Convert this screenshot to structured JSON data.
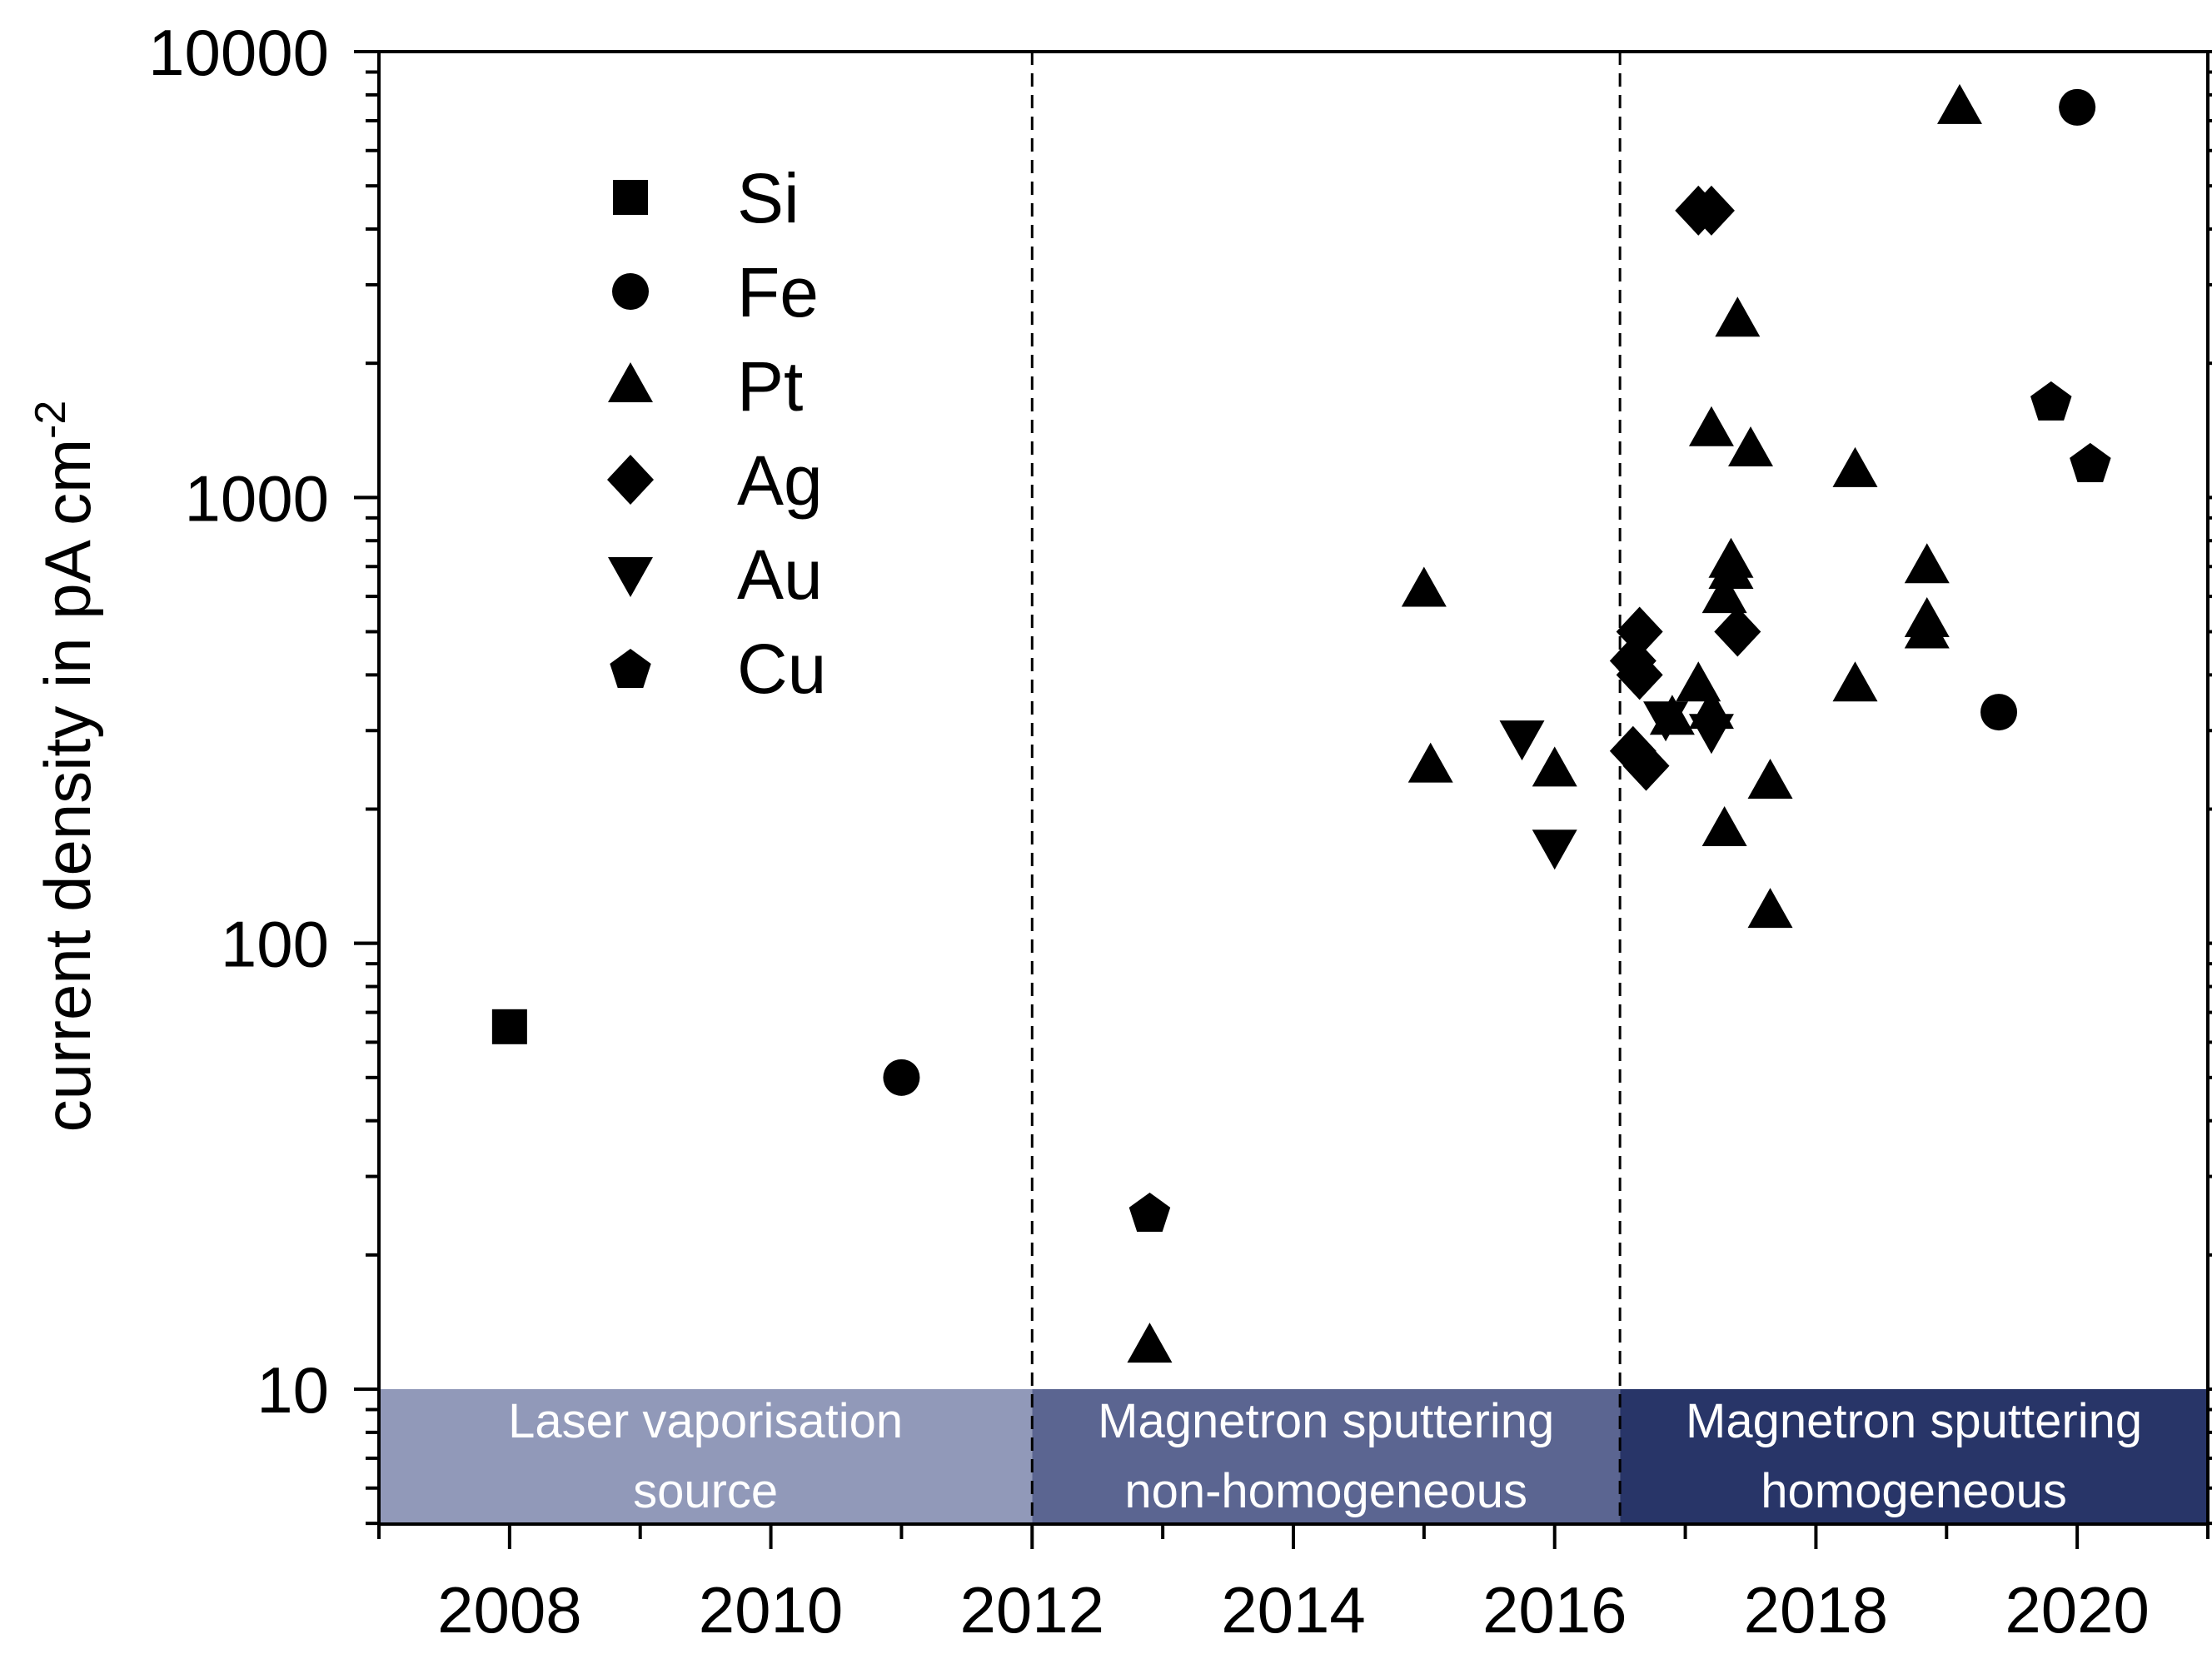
{
  "chart_data": {
    "type": "scatter",
    "ylabel": "current density in pA cm",
    "ylabel_superscript": "-2",
    "xlim": [
      2007,
      2021
    ],
    "ylim": [
      5,
      10000
    ],
    "yscale": "log",
    "grid": false,
    "legend_position": "top-left",
    "x_ticks": [
      2008,
      2010,
      2012,
      2014,
      2016,
      2018,
      2020
    ],
    "x_tick_labels": [
      "2008",
      "2010",
      "2012",
      "2014",
      "2016",
      "2018",
      "2020"
    ],
    "y_ticks": [
      10,
      100,
      1000,
      10000
    ],
    "y_tick_labels": [
      "10",
      "100",
      "1000",
      "10000"
    ],
    "vlines": [
      2012,
      2016.5
    ],
    "regions": [
      {
        "x0": 2007,
        "x1": 2012,
        "y0": 5,
        "y1": 10,
        "color": "#9199b9",
        "lines": [
          "Laser vaporisation",
          "source"
        ]
      },
      {
        "x0": 2012,
        "x1": 2016.5,
        "y0": 5,
        "y1": 10,
        "color": "#5b6591",
        "lines": [
          "Magnetron sputtering",
          "non-homogeneous"
        ]
      },
      {
        "x0": 2016.5,
        "x1": 2021,
        "y0": 5,
        "y1": 10,
        "color": "#283568",
        "lines": [
          "Magnetron sputtering",
          "homogeneous"
        ]
      }
    ],
    "series": [
      {
        "name": "Si",
        "marker": "square",
        "points": [
          [
            2008,
            65
          ]
        ]
      },
      {
        "name": "Fe",
        "marker": "circle",
        "points": [
          [
            2011,
            50
          ],
          [
            2019.4,
            330
          ],
          [
            2020,
            7500
          ]
        ]
      },
      {
        "name": "Pt",
        "marker": "triangle-up",
        "points": [
          [
            2012.9,
            12.5
          ],
          [
            2015,
            620
          ],
          [
            2015.05,
            250
          ],
          [
            2016,
            245
          ],
          [
            2016.9,
            320
          ],
          [
            2017.1,
            380
          ],
          [
            2017.2,
            330
          ],
          [
            2017.2,
            1420
          ],
          [
            2017.3,
            180
          ],
          [
            2017.3,
            600
          ],
          [
            2017.35,
            680
          ],
          [
            2017.35,
            720
          ],
          [
            2017.4,
            2500
          ],
          [
            2017.5,
            1280
          ],
          [
            2017.65,
            230
          ],
          [
            2017.65,
            118
          ],
          [
            2018.3,
            380
          ],
          [
            2018.3,
            1150
          ],
          [
            2018.85,
            500
          ],
          [
            2018.85,
            530
          ],
          [
            2018.85,
            700
          ],
          [
            2019.1,
            7500
          ]
        ]
      },
      {
        "name": "Ag",
        "marker": "diamond",
        "points": [
          [
            2016.6,
            430
          ],
          [
            2016.6,
            270
          ],
          [
            2016.65,
            400
          ],
          [
            2016.65,
            500
          ],
          [
            2016.7,
            250
          ],
          [
            2017.1,
            4400
          ],
          [
            2017.2,
            4400
          ],
          [
            2017.4,
            500
          ]
        ]
      },
      {
        "name": "Au",
        "marker": "triangle-down",
        "points": [
          [
            2015.75,
            290
          ],
          [
            2016,
            165
          ],
          [
            2016.85,
            320
          ],
          [
            2017.2,
            300
          ]
        ]
      },
      {
        "name": "Cu",
        "marker": "pentagon",
        "points": [
          [
            2012.9,
            25
          ],
          [
            2019.8,
            1650
          ],
          [
            2020.1,
            1200
          ]
        ]
      }
    ]
  }
}
